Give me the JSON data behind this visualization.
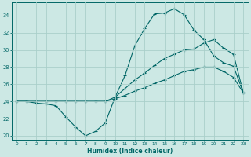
{
  "xlabel": "Humidex (Indice chaleur)",
  "background_color": "#cce8e4",
  "grid_color": "#aacfca",
  "line_color": "#006666",
  "xlim": [
    -0.5,
    23.5
  ],
  "ylim": [
    19.5,
    35.5
  ],
  "yticks": [
    20,
    22,
    24,
    26,
    28,
    30,
    32,
    34
  ],
  "xticks": [
    0,
    1,
    2,
    3,
    4,
    5,
    6,
    7,
    8,
    9,
    10,
    11,
    12,
    13,
    14,
    15,
    16,
    17,
    18,
    19,
    20,
    21,
    22,
    23
  ],
  "line1_x": [
    0,
    1,
    2,
    3,
    4,
    5,
    6,
    7,
    8,
    9,
    10,
    11,
    12,
    13,
    14,
    15,
    16,
    17,
    18,
    19,
    20,
    21,
    22,
    23
  ],
  "line1_y": [
    24.0,
    24.0,
    23.8,
    23.7,
    23.5,
    22.2,
    21.0,
    20.0,
    20.5,
    21.5,
    24.5,
    27.0,
    30.5,
    32.5,
    34.2,
    34.3,
    34.8,
    34.1,
    32.3,
    31.2,
    29.3,
    28.5,
    28.1,
    25.0
  ],
  "line2_x": [
    0,
    1,
    2,
    3,
    4,
    5,
    6,
    7,
    8,
    9,
    10,
    11,
    12,
    13,
    14,
    15,
    16,
    17,
    18,
    19,
    20,
    21,
    22,
    23
  ],
  "line2_y": [
    24.0,
    24.0,
    24.0,
    24.0,
    24.0,
    24.0,
    24.0,
    24.0,
    24.0,
    24.0,
    24.5,
    25.5,
    26.5,
    27.3,
    28.2,
    29.0,
    29.5,
    30.0,
    30.1,
    30.8,
    31.2,
    30.2,
    29.5,
    25.0
  ],
  "line3_x": [
    0,
    1,
    2,
    3,
    4,
    5,
    6,
    7,
    8,
    9,
    10,
    11,
    12,
    13,
    14,
    15,
    16,
    17,
    18,
    19,
    20,
    21,
    22,
    23
  ],
  "line3_y": [
    24.0,
    24.0,
    24.0,
    24.0,
    24.0,
    24.0,
    24.0,
    24.0,
    24.0,
    24.0,
    24.3,
    24.7,
    25.2,
    25.6,
    26.1,
    26.5,
    27.0,
    27.5,
    27.7,
    28.0,
    28.0,
    27.5,
    26.8,
    25.0
  ]
}
